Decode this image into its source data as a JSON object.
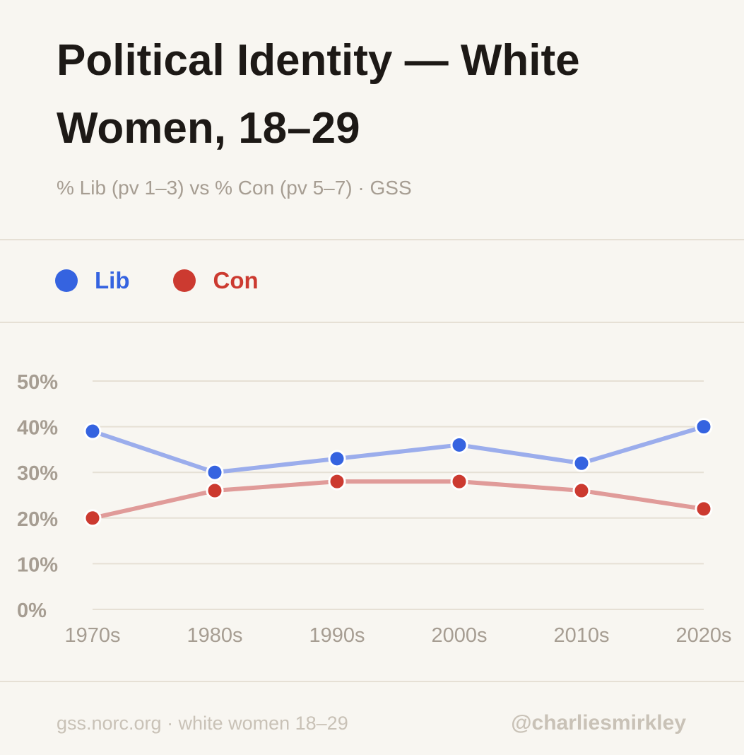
{
  "header": {
    "title": "Political Identity — White Women, 18–29",
    "subtitle": "% Lib (pv 1–3) vs % Con (pv 5–7) · GSS"
  },
  "legend": {
    "items": [
      {
        "label": "Lib",
        "color": "#3563e0"
      },
      {
        "label": "Con",
        "color": "#cc3a30"
      }
    ]
  },
  "chart_data": {
    "type": "line",
    "title": "Political Identity — White Women, 18–29",
    "subtitle": "% Lib (pv 1–3) vs % Con (pv 5–7) · GSS",
    "categories": [
      "1970s",
      "1980s",
      "1990s",
      "2000s",
      "2010s",
      "2020s"
    ],
    "series": [
      {
        "name": "Lib",
        "values": [
          39,
          30,
          33,
          36,
          32,
          40
        ],
        "color": "#3563e0",
        "line_color": "#9badec"
      },
      {
        "name": "Con",
        "values": [
          20,
          26,
          28,
          28,
          26,
          22
        ],
        "color": "#cc3a30",
        "line_color": "#e09b99"
      }
    ],
    "ylim": [
      0,
      50
    ],
    "yticks": [
      "0%",
      "10%",
      "20%",
      "30%",
      "40%",
      "50%"
    ],
    "grid": true,
    "legend_position": "top-left"
  },
  "footer": {
    "source": "gss.norc.org · white women 18–29",
    "handle": "@charliesmirkley"
  }
}
